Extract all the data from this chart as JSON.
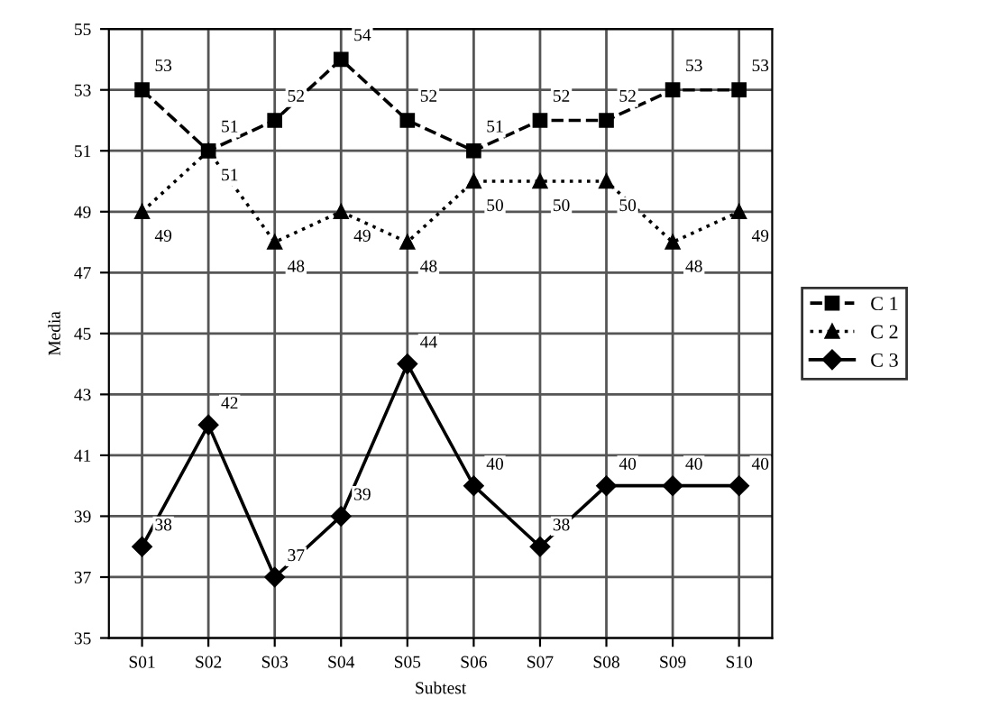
{
  "chart_data": {
    "type": "line",
    "xlabel": "Subtest",
    "ylabel": "Media",
    "categories": [
      "S01",
      "S02",
      "S03",
      "S04",
      "S05",
      "S06",
      "S07",
      "S08",
      "S09",
      "S10"
    ],
    "series": [
      {
        "name": "C 1",
        "color": "#000000",
        "marker": "square",
        "line_style": "dashed",
        "values": [
          53,
          51,
          52,
          54,
          52,
          51,
          52,
          52,
          53,
          53
        ]
      },
      {
        "name": "C 2",
        "color": "#000000",
        "marker": "triangle",
        "line_style": "dotted",
        "values": [
          49,
          51,
          48,
          49,
          48,
          50,
          50,
          50,
          48,
          49
        ]
      },
      {
        "name": "C 3",
        "color": "#000000",
        "marker": "diamond",
        "line_style": "solid",
        "values": [
          38,
          42,
          37,
          39,
          44,
          40,
          38,
          40,
          40,
          40
        ]
      }
    ],
    "ylim": [
      35,
      55
    ],
    "yticks": [
      35,
      37,
      39,
      41,
      43,
      45,
      47,
      49,
      51,
      53,
      55
    ],
    "grid": true,
    "legend": "right",
    "data_labels": true
  }
}
